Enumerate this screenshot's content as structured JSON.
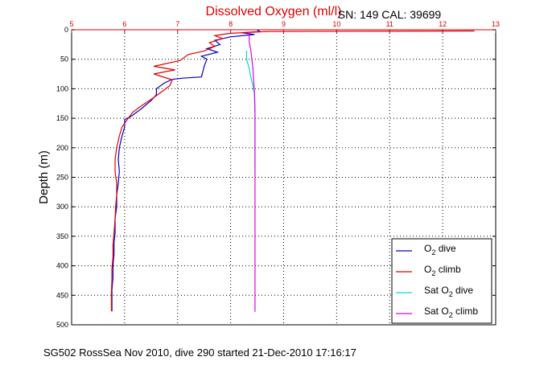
{
  "chart_data": {
    "type": "line",
    "title": "Dissolved Oxygen (ml/l)",
    "serial_label": "SN: 149  CAL: 39699",
    "xlabel": "Dissolved Oxygen (ml/l)",
    "ylabel": "Depth (m)",
    "caption": "SG502 RossSea Nov 2010, dive 290 started 21-Dec-2010 17:16:17",
    "xlim": [
      5,
      13
    ],
    "ylim": [
      0,
      500
    ],
    "y_reversed": true,
    "x_axis_position": "top",
    "xticks": [
      5,
      6,
      7,
      8,
      9,
      10,
      11,
      12,
      13
    ],
    "yticks": [
      0,
      50,
      100,
      150,
      200,
      250,
      300,
      350,
      400,
      450,
      500
    ],
    "grid": true,
    "legend_position": "bottom-right",
    "series": [
      {
        "name": "O2 dive",
        "legend_main": "O",
        "legend_sub": "2",
        "legend_suffix": " dive",
        "legend_prefix": "",
        "color": "#0000c8",
        "points": [
          [
            8.5,
            0
          ],
          [
            8.55,
            3
          ],
          [
            8.2,
            5
          ],
          [
            8.45,
            8
          ],
          [
            8.0,
            12
          ],
          [
            7.7,
            18
          ],
          [
            7.8,
            25
          ],
          [
            7.55,
            32
          ],
          [
            7.75,
            38
          ],
          [
            7.45,
            45
          ],
          [
            7.55,
            50
          ],
          [
            7.5,
            62
          ],
          [
            7.45,
            80
          ],
          [
            7.1,
            82
          ],
          [
            6.9,
            84
          ],
          [
            6.75,
            90
          ],
          [
            6.6,
            100
          ],
          [
            6.6,
            110
          ],
          [
            6.5,
            120
          ],
          [
            6.3,
            135
          ],
          [
            6.1,
            148
          ],
          [
            6.0,
            152
          ],
          [
            6.0,
            165
          ],
          [
            5.95,
            180
          ],
          [
            5.9,
            200
          ],
          [
            5.88,
            220
          ],
          [
            5.9,
            240
          ],
          [
            5.88,
            260
          ],
          [
            5.85,
            280
          ],
          [
            5.85,
            300
          ],
          [
            5.82,
            320
          ],
          [
            5.82,
            345
          ],
          [
            5.8,
            360
          ],
          [
            5.8,
            380
          ],
          [
            5.78,
            400
          ],
          [
            5.78,
            420
          ],
          [
            5.76,
            440
          ],
          [
            5.76,
            460
          ],
          [
            5.76,
            477
          ]
        ]
      },
      {
        "name": "O2 climb",
        "legend_main": "O",
        "legend_sub": "2",
        "legend_suffix": " climb",
        "legend_prefix": "",
        "color": "#e00000",
        "points": [
          [
            12.6,
            2
          ],
          [
            8.7,
            3
          ],
          [
            8.0,
            6
          ],
          [
            7.7,
            10
          ],
          [
            7.85,
            15
          ],
          [
            7.6,
            22
          ],
          [
            7.7,
            28
          ],
          [
            7.5,
            36
          ],
          [
            7.2,
            42
          ],
          [
            7.05,
            52
          ],
          [
            6.55,
            62
          ],
          [
            6.95,
            68
          ],
          [
            6.55,
            75
          ],
          [
            6.9,
            85
          ],
          [
            6.85,
            95
          ],
          [
            6.7,
            105
          ],
          [
            6.5,
            118
          ],
          [
            6.3,
            130
          ],
          [
            6.15,
            140
          ],
          [
            6.05,
            152
          ],
          [
            5.95,
            165
          ],
          [
            5.9,
            180
          ],
          [
            5.85,
            200
          ],
          [
            5.82,
            220
          ],
          [
            5.82,
            240
          ],
          [
            5.85,
            260
          ],
          [
            5.85,
            280
          ],
          [
            5.83,
            300
          ],
          [
            5.82,
            320
          ],
          [
            5.8,
            345
          ],
          [
            5.78,
            365
          ],
          [
            5.78,
            385
          ],
          [
            5.76,
            405
          ],
          [
            5.76,
            425
          ],
          [
            5.75,
            445
          ],
          [
            5.75,
            465
          ],
          [
            5.75,
            477
          ]
        ]
      },
      {
        "name": "Sat O2 dive",
        "legend_main": "Sat O",
        "legend_sub": "2",
        "legend_suffix": " dive",
        "legend_prefix": "",
        "color": "#00dada",
        "points": [
          [
            8.3,
            35
          ],
          [
            8.3,
            50
          ],
          [
            8.35,
            65
          ],
          [
            8.38,
            80
          ],
          [
            8.42,
            95
          ],
          [
            8.45,
            110
          ],
          [
            8.46,
            140
          ],
          [
            8.46,
            170
          ],
          [
            8.46,
            200
          ],
          [
            8.46,
            235
          ]
        ]
      },
      {
        "name": "Sat O2 climb",
        "legend_main": "Sat O",
        "legend_sub": "2",
        "legend_suffix": " climb",
        "legend_prefix": "",
        "color": "#e000e0",
        "points": [
          [
            8.35,
            5
          ],
          [
            8.35,
            20
          ],
          [
            8.38,
            35
          ],
          [
            8.4,
            50
          ],
          [
            8.42,
            65
          ],
          [
            8.43,
            80
          ],
          [
            8.44,
            95
          ],
          [
            8.45,
            110
          ],
          [
            8.46,
            140
          ],
          [
            8.46,
            180
          ],
          [
            8.46,
            220
          ],
          [
            8.46,
            260
          ],
          [
            8.46,
            300
          ],
          [
            8.46,
            340
          ],
          [
            8.46,
            380
          ],
          [
            8.46,
            420
          ],
          [
            8.46,
            460
          ],
          [
            8.46,
            478
          ]
        ]
      }
    ]
  }
}
